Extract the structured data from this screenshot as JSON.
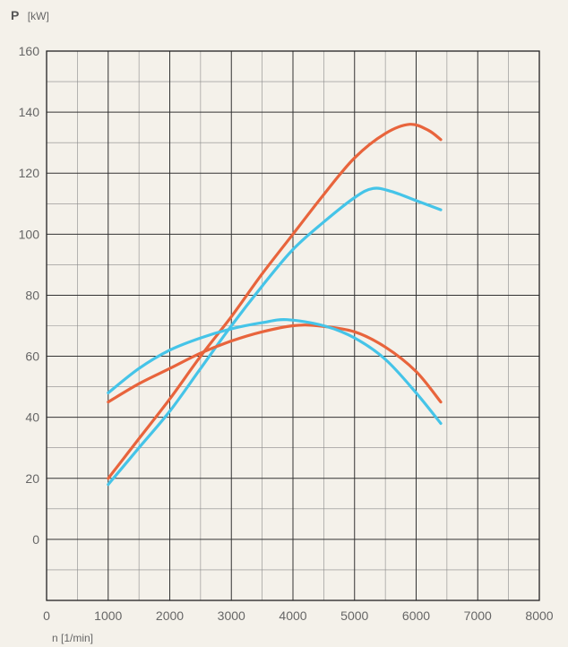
{
  "chart_data": {
    "type": "line",
    "title": "",
    "ylabel_symbol": "P",
    "ylabel_unit": "[kW]",
    "xlabel": "n [1/min]",
    "xlim": [
      0,
      8000
    ],
    "ylim": [
      -20,
      160
    ],
    "grid": true,
    "x_ticks": [
      0,
      1000,
      2000,
      3000,
      4000,
      5000,
      6000,
      7000,
      8000
    ],
    "x_tick_labels": [
      "0",
      "1000",
      "2000",
      "3000",
      "4000",
      "5000",
      "6000",
      "7000",
      "8000"
    ],
    "y_ticks": [
      0,
      20,
      40,
      60,
      80,
      100,
      120,
      140,
      160
    ],
    "y_tick_labels": [
      "0",
      "20",
      "40",
      "60",
      "80",
      "100",
      "120",
      "140",
      "160"
    ],
    "series": [
      {
        "color": "#e8643c",
        "x": [
          1000,
          1500,
          2000,
          2500,
          3000,
          3500,
          4000,
          4500,
          5000,
          5500,
          5900,
          6200,
          6400
        ],
        "values": [
          20,
          33,
          46,
          60,
          73,
          87,
          100,
          113,
          125,
          133,
          136,
          134,
          131
        ]
      },
      {
        "color": "#45c4e8",
        "x": [
          1000,
          1500,
          2000,
          2500,
          3000,
          3500,
          4000,
          4500,
          5000,
          5300,
          5600,
          6000,
          6400
        ],
        "values": [
          18,
          30,
          42,
          56,
          70,
          83,
          95,
          104,
          112,
          115,
          114,
          111,
          108
        ]
      },
      {
        "color": "#e8643c",
        "x": [
          1000,
          1500,
          2000,
          2500,
          3000,
          3500,
          4000,
          4400,
          5000,
          5500,
          6000,
          6400
        ],
        "values": [
          45,
          51,
          56,
          61,
          65,
          68,
          70,
          70,
          68,
          63,
          55,
          45
        ]
      },
      {
        "color": "#45c4e8",
        "x": [
          1000,
          1500,
          2000,
          2500,
          3000,
          3500,
          3900,
          4500,
          5000,
          5500,
          6000,
          6400
        ],
        "values": [
          48,
          56,
          62,
          66,
          69,
          71,
          72,
          70,
          66,
          59,
          48,
          38
        ]
      }
    ]
  }
}
